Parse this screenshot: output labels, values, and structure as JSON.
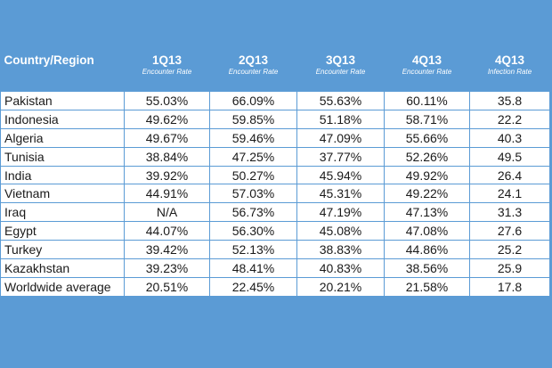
{
  "header": {
    "country_label": "Country/Region",
    "columns": [
      {
        "period": "1Q13",
        "metric": "Encounter Rate"
      },
      {
        "period": "2Q13",
        "metric": "Encounter Rate"
      },
      {
        "period": "3Q13",
        "metric": "Encounter Rate"
      },
      {
        "period": "4Q13",
        "metric": "Encounter Rate"
      },
      {
        "period": "4Q13",
        "metric": "Infection Rate"
      }
    ]
  },
  "rows": [
    {
      "country": "Pakistan",
      "values": [
        "55.03%",
        "66.09%",
        "55.63%",
        "60.11%",
        "35.8"
      ]
    },
    {
      "country": "Indonesia",
      "values": [
        "49.62%",
        "59.85%",
        "51.18%",
        "58.71%",
        "22.2"
      ]
    },
    {
      "country": "Algeria",
      "values": [
        "49.67%",
        "59.46%",
        "47.09%",
        "55.66%",
        "40.3"
      ]
    },
    {
      "country": "Tunisia",
      "values": [
        "38.84%",
        "47.25%",
        "37.77%",
        "52.26%",
        "49.5"
      ]
    },
    {
      "country": "India",
      "values": [
        "39.92%",
        "50.27%",
        "45.94%",
        "49.92%",
        "26.4"
      ]
    },
    {
      "country": "Vietnam",
      "values": [
        "44.91%",
        "57.03%",
        "45.31%",
        "49.22%",
        "24.1"
      ]
    },
    {
      "country": "Iraq",
      "values": [
        "N/A",
        "56.73%",
        "47.19%",
        "47.13%",
        "31.3"
      ]
    },
    {
      "country": "Egypt",
      "values": [
        "44.07%",
        "56.30%",
        "45.08%",
        "47.08%",
        "27.6"
      ]
    },
    {
      "country": "Turkey",
      "values": [
        "39.42%",
        "52.13%",
        "38.83%",
        "44.86%",
        "25.2"
      ]
    },
    {
      "country": "Kazakhstan",
      "values": [
        "39.23%",
        "48.41%",
        "40.83%",
        "38.56%",
        "25.9"
      ]
    },
    {
      "country": "Worldwide average",
      "values": [
        "20.51%",
        "22.45%",
        "20.21%",
        "21.58%",
        "17.8"
      ]
    }
  ],
  "colors": {
    "background": "#5b9bd5",
    "cell": "#ffffff",
    "header_text": "#ffffff"
  }
}
